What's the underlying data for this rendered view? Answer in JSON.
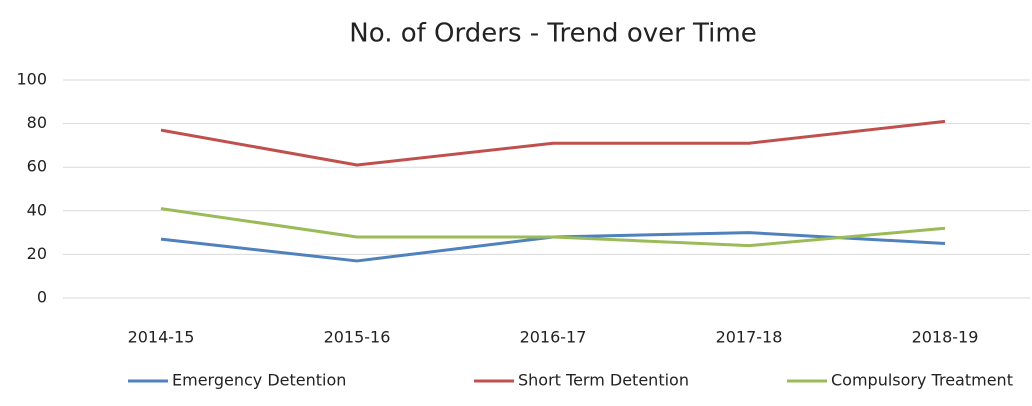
{
  "chart_data": {
    "type": "line",
    "title": "No. of Orders - Trend over Time",
    "categories": [
      "2014-15",
      "2015-16",
      "2016-17",
      "2017-18",
      "2018-19"
    ],
    "series": [
      {
        "name": "Emergency Detention",
        "color": "#4f81bd",
        "values": [
          27,
          17,
          28,
          30,
          25
        ]
      },
      {
        "name": "Short Term Detention",
        "color": "#c0504d",
        "values": [
          77,
          61,
          71,
          71,
          81
        ]
      },
      {
        "name": "Compulsory Treatment",
        "color": "#9bbb59",
        "values": [
          41,
          28,
          28,
          24,
          32
        ]
      }
    ],
    "ylim": [
      0,
      100
    ],
    "yticks": [
      0,
      20,
      40,
      60,
      80,
      100
    ],
    "grid": true,
    "legend": "bottom"
  }
}
